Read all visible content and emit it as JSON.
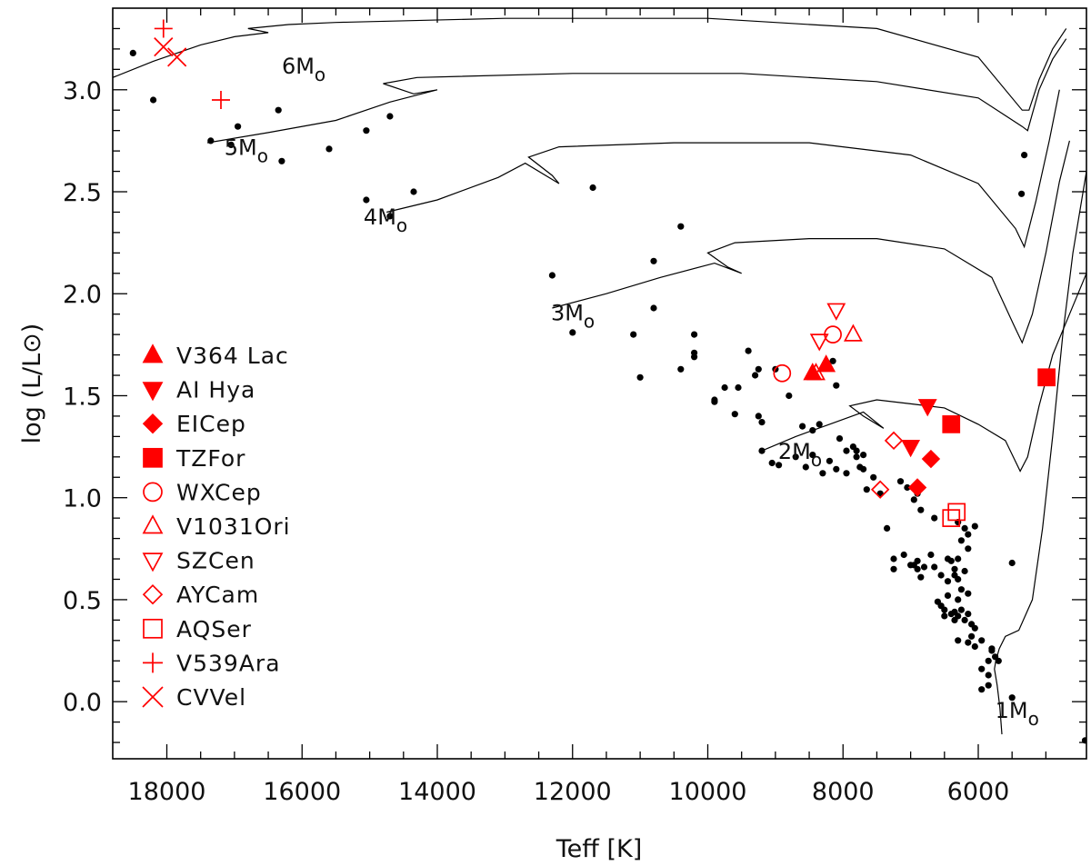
{
  "chart_data": {
    "type": "scatter",
    "title": "",
    "xlabel": "Teff [K]",
    "ylabel": "log (L/L⊙)",
    "xlim": [
      18800,
      4400
    ],
    "ylim": [
      -0.28,
      3.4
    ],
    "x_ticks": [
      {
        "value": 18000,
        "label": "18000"
      },
      {
        "value": 16000,
        "label": "16000"
      },
      {
        "value": 14000,
        "label": "14000"
      },
      {
        "value": 12000,
        "label": "12000"
      },
      {
        "value": 10000,
        "label": "10000"
      },
      {
        "value": 8000,
        "label": "8000"
      },
      {
        "value": 6000,
        "label": "6000"
      }
    ],
    "y_ticks": [
      {
        "value": 0.0,
        "label": "0.0"
      },
      {
        "value": 0.5,
        "label": "0.5"
      },
      {
        "value": 1.0,
        "label": "1.0"
      },
      {
        "value": 1.5,
        "label": "1.5"
      },
      {
        "value": 2.0,
        "label": "2.0"
      },
      {
        "value": 2.5,
        "label": "2.5"
      },
      {
        "value": 3.0,
        "label": "3.0"
      }
    ],
    "tracks": [
      {
        "mass": "1",
        "label_text": "1M",
        "label_sub": "o",
        "label_at": [
          5750,
          -0.08
        ],
        "points": [
          [
            5650,
            -0.16
          ],
          [
            5680,
            -0.03
          ],
          [
            5720,
            0.08
          ],
          [
            5760,
            0.16
          ],
          [
            5740,
            0.2
          ],
          [
            5690,
            0.26
          ],
          [
            5600,
            0.32
          ],
          [
            5400,
            0.35
          ],
          [
            5200,
            0.5
          ],
          [
            5050,
            0.85
          ],
          [
            4900,
            1.3
          ],
          [
            4750,
            1.8
          ],
          [
            4600,
            2.2
          ],
          [
            4400,
            2.6
          ]
        ]
      },
      {
        "mass": "2",
        "label_text": "2M",
        "label_sub": "o",
        "label_at": [
          8960,
          1.19
        ],
        "points": [
          [
            9200,
            1.23
          ],
          [
            8700,
            1.3
          ],
          [
            8200,
            1.36
          ],
          [
            7700,
            1.42
          ],
          [
            7400,
            1.34
          ],
          [
            7700,
            1.4
          ],
          [
            7900,
            1.45
          ],
          [
            7500,
            1.48
          ],
          [
            7000,
            1.46
          ],
          [
            6500,
            1.44
          ],
          [
            6000,
            1.36
          ],
          [
            5600,
            1.28
          ],
          [
            5380,
            1.13
          ],
          [
            5270,
            1.2
          ],
          [
            5100,
            1.45
          ],
          [
            4900,
            1.7
          ],
          [
            4650,
            1.9
          ],
          [
            4400,
            2.1
          ]
        ]
      },
      {
        "mass": "3",
        "label_text": "3M",
        "label_sub": "o",
        "label_at": [
          12320,
          1.87
        ],
        "points": [
          [
            12300,
            1.93
          ],
          [
            11500,
            2.0
          ],
          [
            10700,
            2.08
          ],
          [
            9900,
            2.15
          ],
          [
            9500,
            2.1
          ],
          [
            9700,
            2.13
          ],
          [
            10000,
            2.2
          ],
          [
            9600,
            2.25
          ],
          [
            8500,
            2.27
          ],
          [
            7500,
            2.27
          ],
          [
            6500,
            2.22
          ],
          [
            5800,
            2.08
          ],
          [
            5480,
            1.85
          ],
          [
            5350,
            1.76
          ],
          [
            5200,
            1.9
          ],
          [
            5000,
            2.2
          ],
          [
            4800,
            2.55
          ],
          [
            4650,
            2.75
          ]
        ]
      },
      {
        "mass": "4",
        "label_text": "4M",
        "label_sub": "o",
        "label_at": [
          15090,
          2.34
        ],
        "points": [
          [
            14750,
            2.4
          ],
          [
            14000,
            2.46
          ],
          [
            13100,
            2.57
          ],
          [
            12700,
            2.64
          ],
          [
            12200,
            2.54
          ],
          [
            12300,
            2.58
          ],
          [
            12650,
            2.67
          ],
          [
            12200,
            2.72
          ],
          [
            10500,
            2.74
          ],
          [
            8500,
            2.74
          ],
          [
            7000,
            2.68
          ],
          [
            6000,
            2.54
          ],
          [
            5450,
            2.32
          ],
          [
            5320,
            2.23
          ],
          [
            5150,
            2.45
          ],
          [
            4950,
            2.75
          ],
          [
            4800,
            3.0
          ]
        ]
      },
      {
        "mass": "5",
        "label_text": "5M",
        "label_sub": "o",
        "label_at": [
          17150,
          2.68
        ],
        "points": [
          [
            17400,
            2.74
          ],
          [
            16500,
            2.79
          ],
          [
            15500,
            2.85
          ],
          [
            14700,
            2.94
          ],
          [
            14000,
            3.0
          ],
          [
            14350,
            2.98
          ],
          [
            14800,
            3.03
          ],
          [
            14300,
            3.06
          ],
          [
            12000,
            3.08
          ],
          [
            9500,
            3.08
          ],
          [
            7500,
            3.04
          ],
          [
            6000,
            2.96
          ],
          [
            5350,
            2.82
          ],
          [
            5270,
            2.8
          ],
          [
            5100,
            3.0
          ],
          [
            4900,
            3.15
          ],
          [
            4700,
            3.25
          ]
        ]
      },
      {
        "mass": "6",
        "label_text": "6M",
        "label_sub": "o",
        "label_at": [
          16300,
          3.08
        ],
        "points": [
          [
            18800,
            3.06
          ],
          [
            18200,
            3.14
          ],
          [
            17500,
            3.22
          ],
          [
            17000,
            3.26
          ],
          [
            16500,
            3.28
          ],
          [
            16800,
            3.3
          ],
          [
            16200,
            3.32
          ],
          [
            15500,
            3.33
          ],
          [
            13000,
            3.35
          ],
          [
            10000,
            3.35
          ],
          [
            7500,
            3.3
          ],
          [
            6000,
            3.16
          ],
          [
            5350,
            2.9
          ],
          [
            5250,
            2.9
          ],
          [
            5100,
            3.05
          ],
          [
            4900,
            3.2
          ],
          [
            4700,
            3.3
          ]
        ]
      }
    ],
    "field_stars_color": "#000000",
    "field_stars": [
      [
        18500,
        3.18
      ],
      [
        18200,
        2.95
      ],
      [
        17350,
        2.75
      ],
      [
        17050,
        2.73
      ],
      [
        16950,
        2.82
      ],
      [
        16350,
        2.9
      ],
      [
        16300,
        2.65
      ],
      [
        15600,
        2.71
      ],
      [
        15050,
        2.8
      ],
      [
        14700,
        2.87
      ],
      [
        15050,
        2.46
      ],
      [
        14700,
        2.38
      ],
      [
        14350,
        2.5
      ],
      [
        11700,
        2.52
      ],
      [
        10400,
        2.33
      ],
      [
        12300,
        2.09
      ],
      [
        10800,
        2.16
      ],
      [
        12000,
        1.81
      ],
      [
        11100,
        1.8
      ],
      [
        10800,
        1.93
      ],
      [
        11000,
        1.59
      ],
      [
        10200,
        1.8
      ],
      [
        10200,
        1.71
      ],
      [
        10200,
        1.69
      ],
      [
        10400,
        1.63
      ],
      [
        9400,
        1.72
      ],
      [
        9250,
        1.63
      ],
      [
        9300,
        1.6
      ],
      [
        9000,
        1.63
      ],
      [
        9750,
        1.54
      ],
      [
        9550,
        1.54
      ],
      [
        9900,
        1.48
      ],
      [
        9900,
        1.47
      ],
      [
        9600,
        1.41
      ],
      [
        9250,
        1.4
      ],
      [
        9200,
        1.37
      ],
      [
        8800,
        1.5
      ],
      [
        8600,
        1.35
      ],
      [
        8450,
        1.33
      ],
      [
        8350,
        1.36
      ],
      [
        8150,
        1.67
      ],
      [
        8100,
        1.55
      ],
      [
        8050,
        1.29
      ],
      [
        7950,
        1.23
      ],
      [
        7800,
        1.23
      ],
      [
        7700,
        1.21
      ],
      [
        7850,
        1.25
      ],
      [
        7800,
        1.2
      ],
      [
        7750,
        1.15
      ],
      [
        7650,
        1.04
      ],
      [
        7450,
        1.02
      ],
      [
        7350,
        0.85
      ],
      [
        9200,
        1.23
      ],
      [
        9050,
        1.17
      ],
      [
        8950,
        1.16
      ],
      [
        8700,
        1.2
      ],
      [
        8550,
        1.15
      ],
      [
        8450,
        1.21
      ],
      [
        8300,
        1.12
      ],
      [
        8200,
        1.18
      ],
      [
        8100,
        1.14
      ],
      [
        7950,
        1.12
      ],
      [
        7700,
        1.14
      ],
      [
        7550,
        1.1
      ],
      [
        7150,
        1.08
      ],
      [
        7050,
        1.05
      ],
      [
        6900,
        1.02
      ],
      [
        6950,
        0.99
      ],
      [
        6850,
        0.94
      ],
      [
        6650,
        0.9
      ],
      [
        6300,
        0.88
      ],
      [
        6200,
        0.85
      ],
      [
        6150,
        0.82
      ],
      [
        6050,
        0.86
      ],
      [
        6250,
        0.79
      ],
      [
        6150,
        0.75
      ],
      [
        7250,
        0.7
      ],
      [
        7250,
        0.65
      ],
      [
        7100,
        0.72
      ],
      [
        7000,
        0.67
      ],
      [
        6950,
        0.67
      ],
      [
        6900,
        0.69
      ],
      [
        6900,
        0.65
      ],
      [
        6800,
        0.66
      ],
      [
        6850,
        0.61
      ],
      [
        6700,
        0.72
      ],
      [
        6650,
        0.66
      ],
      [
        6550,
        0.62
      ],
      [
        6450,
        0.7
      ],
      [
        6400,
        0.69
      ],
      [
        6350,
        0.65
      ],
      [
        6300,
        0.7
      ],
      [
        6350,
        0.62
      ],
      [
        6450,
        0.59
      ],
      [
        6300,
        0.6
      ],
      [
        6250,
        0.55
      ],
      [
        6200,
        0.64
      ],
      [
        6150,
        0.53
      ],
      [
        6600,
        0.49
      ],
      [
        6500,
        0.45
      ],
      [
        6500,
        0.42
      ],
      [
        6400,
        0.43
      ],
      [
        6350,
        0.4
      ],
      [
        6300,
        0.42
      ],
      [
        6250,
        0.45
      ],
      [
        6200,
        0.4
      ],
      [
        6150,
        0.43
      ],
      [
        6100,
        0.38
      ],
      [
        6050,
        0.36
      ],
      [
        6100,
        0.32
      ],
      [
        6150,
        0.29
      ],
      [
        6300,
        0.3
      ],
      [
        6350,
        0.44
      ],
      [
        6300,
        0.5
      ],
      [
        6450,
        0.52
      ],
      [
        6550,
        0.47
      ],
      [
        6050,
        0.27
      ],
      [
        5950,
        0.3
      ],
      [
        5800,
        0.25
      ],
      [
        5850,
        0.2
      ],
      [
        5800,
        0.26
      ],
      [
        5950,
        0.16
      ],
      [
        5850,
        0.13
      ],
      [
        5950,
        0.06
      ],
      [
        5850,
        0.08
      ],
      [
        5700,
        0.2
      ],
      [
        5750,
        0.22
      ],
      [
        5500,
        0.02
      ],
      [
        5500,
        0.68
      ],
      [
        5320,
        2.68
      ],
      [
        5360,
        2.49
      ],
      [
        4420,
        -0.19
      ]
    ],
    "series": [
      {
        "name": "V364 Lac",
        "marker": "triangle-up",
        "filled": true,
        "color": "#ff0000",
        "points": [
          [
            8450,
            1.61
          ],
          [
            8250,
            1.65
          ]
        ]
      },
      {
        "name": "AI Hya",
        "marker": "triangle-down",
        "filled": true,
        "color": "#ff0000",
        "points": [
          [
            6750,
            1.45
          ],
          [
            7000,
            1.25
          ]
        ]
      },
      {
        "name": "EICep",
        "marker": "diamond",
        "filled": true,
        "color": "#ff0000",
        "points": [
          [
            6700,
            1.19
          ],
          [
            6900,
            1.05
          ]
        ]
      },
      {
        "name": "TZFor",
        "marker": "square",
        "filled": true,
        "color": "#ff0000",
        "points": [
          [
            6400,
            1.36
          ],
          [
            4990,
            1.59
          ]
        ]
      },
      {
        "name": "WXCep",
        "marker": "circle",
        "filled": false,
        "color": "#ff0000",
        "points": [
          [
            8900,
            1.61
          ],
          [
            8150,
            1.8
          ]
        ]
      },
      {
        "name": "V1031Ori",
        "marker": "triangle-up",
        "filled": false,
        "color": "#ff0000",
        "points": [
          [
            8400,
            1.61
          ],
          [
            7850,
            1.8
          ]
        ]
      },
      {
        "name": "SZCen",
        "marker": "triangle-down",
        "filled": false,
        "color": "#ff0000",
        "points": [
          [
            8350,
            1.77
          ],
          [
            8100,
            1.92
          ]
        ]
      },
      {
        "name": "AYCam",
        "marker": "diamond",
        "filled": false,
        "color": "#ff0000",
        "points": [
          [
            7250,
            1.28
          ],
          [
            7450,
            1.04
          ]
        ]
      },
      {
        "name": "AQSer",
        "marker": "square",
        "filled": false,
        "color": "#ff0000",
        "points": [
          [
            6400,
            0.9
          ],
          [
            6320,
            0.93
          ]
        ]
      },
      {
        "name": "V539Ara",
        "marker": "plus",
        "filled": false,
        "color": "#ff0000",
        "points": [
          [
            18050,
            3.3
          ],
          [
            17200,
            2.95
          ]
        ]
      },
      {
        "name": "CVVel",
        "marker": "x",
        "filled": false,
        "color": "#ff0000",
        "points": [
          [
            18050,
            3.21
          ],
          [
            17850,
            3.16
          ]
        ]
      }
    ],
    "legend": {
      "placement": "left-middle"
    }
  }
}
